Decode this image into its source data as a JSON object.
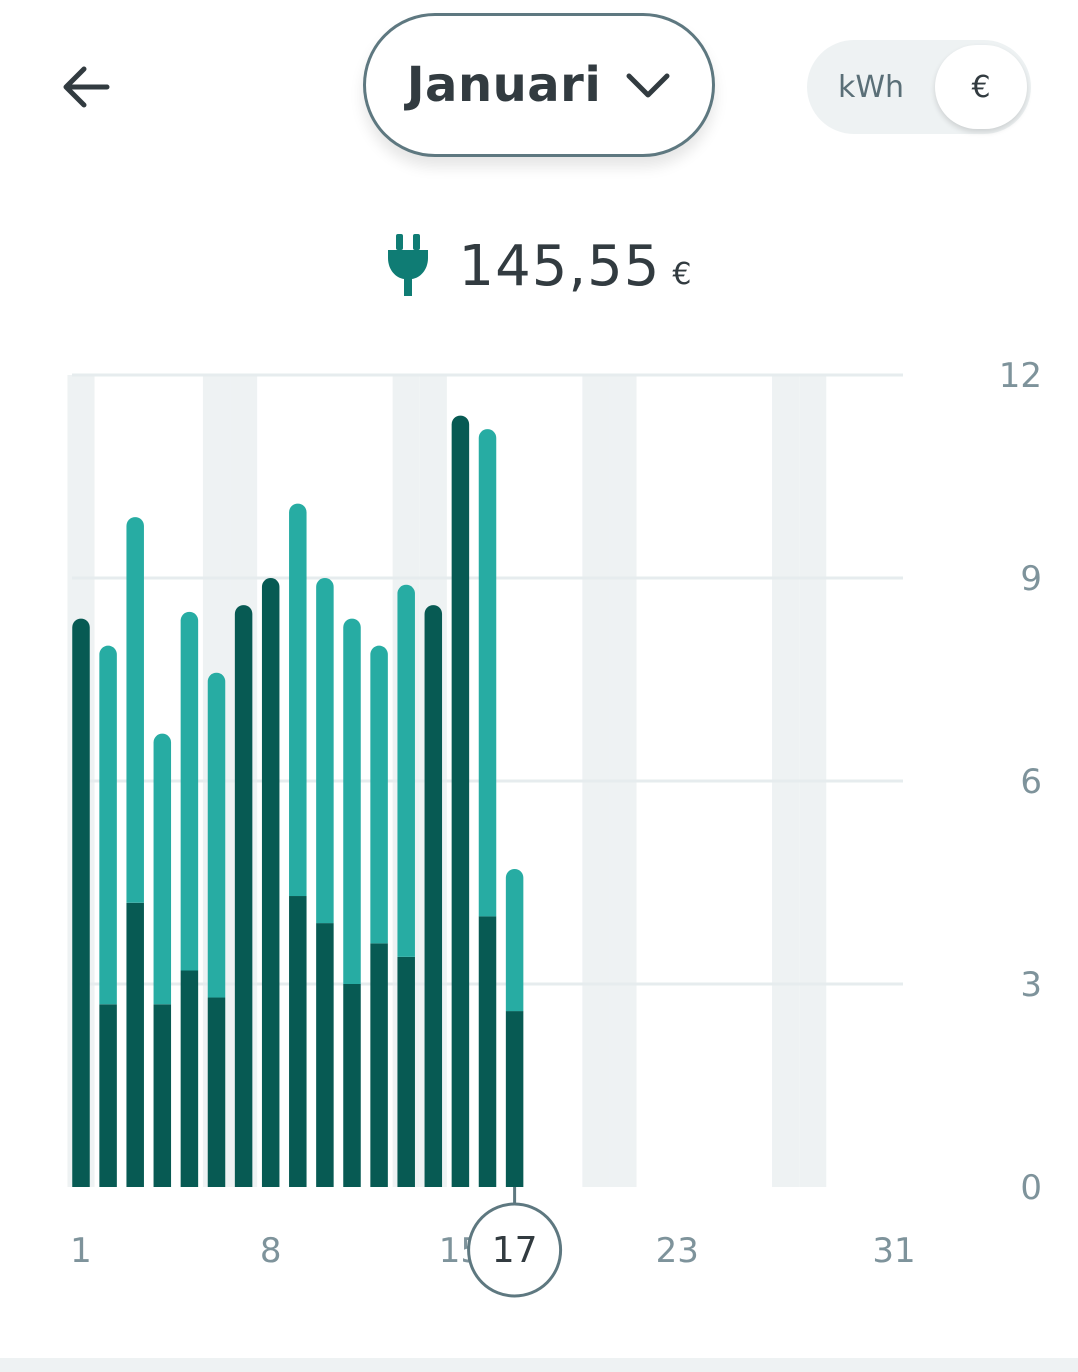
{
  "header": {
    "back_icon": "arrow-left-icon",
    "month_label": "Januari",
    "month_dropdown_icon": "chevron-down-icon",
    "unit_options": [
      "kWh",
      "€"
    ],
    "unit_selected": "€"
  },
  "summary": {
    "icon": "electric-plug-icon",
    "total_value": "145,55",
    "total_unit": "€"
  },
  "colors": {
    "series_dark": "#075a53",
    "series_light": "#27aca3",
    "weekend_band": "#eef2f3",
    "grid": "#e6ecee",
    "axis_text": "#7e939b",
    "plug_icon": "#0f7c74"
  },
  "chart_data": {
    "type": "bar",
    "stacked": true,
    "x_tick_labels": [
      "1",
      "8",
      "15",
      "23",
      "31"
    ],
    "y_tick_labels": [
      "0",
      "3",
      "6",
      "9",
      "12"
    ],
    "ylim": [
      0,
      12
    ],
    "selected_day": "17",
    "weekend_days": [
      1,
      6,
      7,
      13,
      14,
      20,
      21,
      27,
      28
    ],
    "x": [
      1,
      2,
      3,
      4,
      5,
      6,
      7,
      8,
      9,
      10,
      11,
      12,
      13,
      14,
      15,
      16,
      17
    ],
    "series": [
      {
        "values": [
          8.4,
          2.7,
          4.2,
          2.7,
          3.2,
          2.8,
          8.6,
          9.0,
          4.3,
          3.9,
          3.0,
          3.6,
          3.4,
          8.6,
          11.4,
          4.0,
          2.6
        ]
      },
      {
        "values": [
          0,
          5.3,
          5.7,
          4.0,
          5.3,
          4.8,
          0,
          0,
          5.8,
          5.1,
          5.4,
          4.4,
          5.5,
          0,
          0,
          7.2,
          2.1
        ]
      }
    ]
  }
}
